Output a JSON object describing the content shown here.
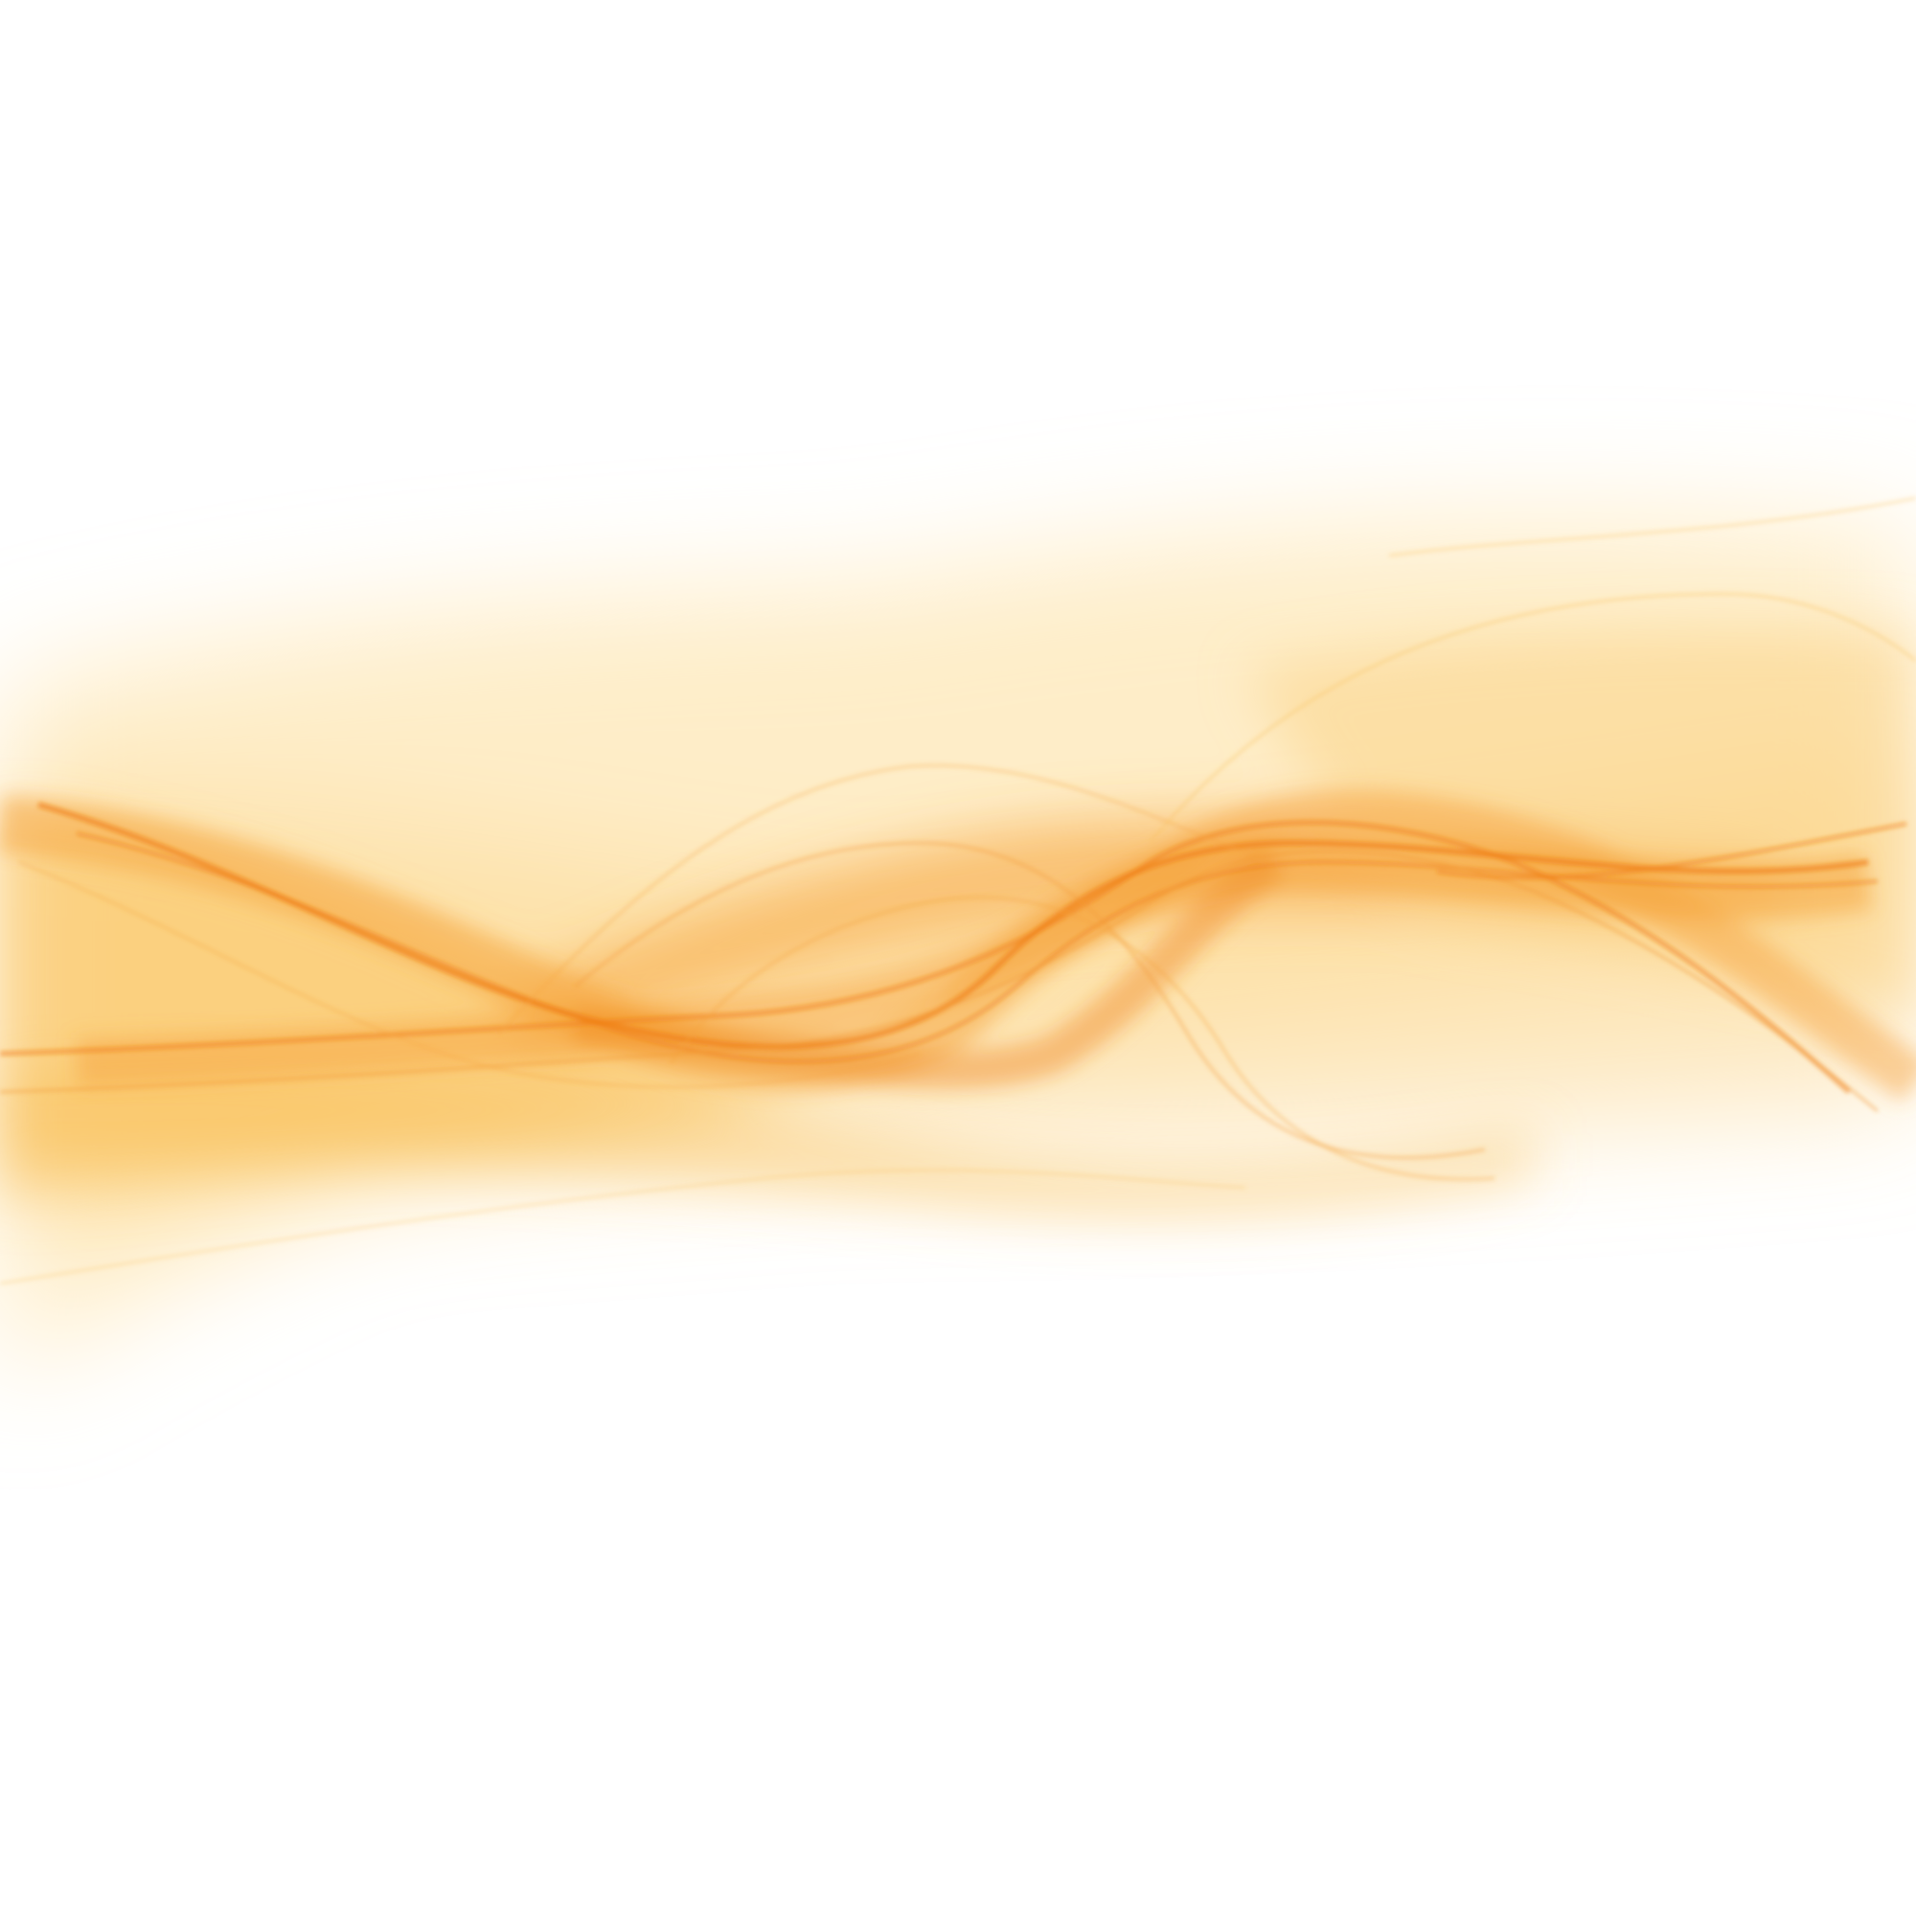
{
  "artwork": {
    "background_color": "#ffffff",
    "accent_colors": {
      "deep_orange": "#f07d14",
      "orange": "#f6a23a",
      "amber": "#f9c15c",
      "pale_yellow": "#fde7b5"
    },
    "motif": "flowing-wave-ribbons"
  }
}
